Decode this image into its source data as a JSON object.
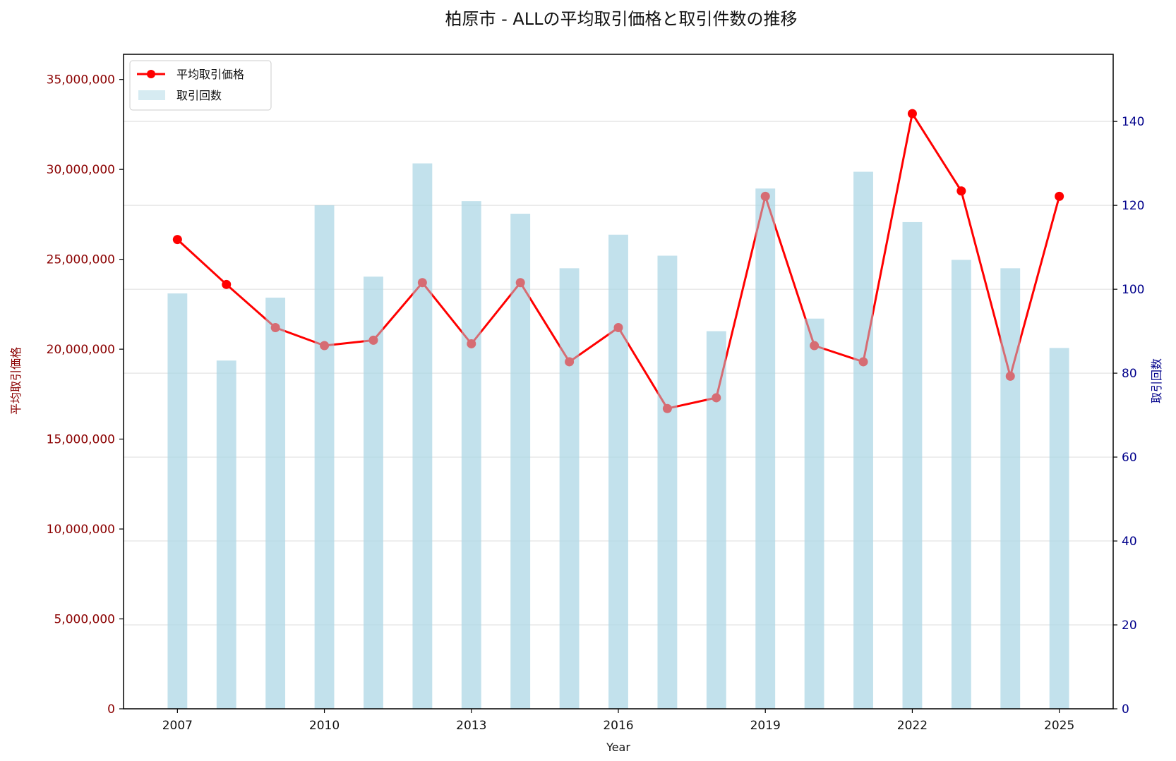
{
  "chart_data": {
    "type": "bar+line",
    "title": "柏原市 - ALLの平均取引価格と取引件数の推移",
    "xlabel": "Year",
    "ylabel_left": "平均取引価格",
    "ylabel_right": "取引回数",
    "x": [
      2007,
      2008,
      2009,
      2010,
      2011,
      2012,
      2013,
      2014,
      2015,
      2016,
      2017,
      2018,
      2019,
      2020,
      2021,
      2022,
      2023,
      2024,
      2025
    ],
    "x_ticks": [
      "2007",
      "2010",
      "2013",
      "2016",
      "2019",
      "2022",
      "2025"
    ],
    "xlim": [
      2005.9,
      2026.1
    ],
    "ylim_left": [
      0,
      36400000
    ],
    "ylim_right": [
      0,
      156
    ],
    "yticks_left": [
      "0",
      "5,000,000",
      "10,000,000",
      "15,000,000",
      "20,000,000",
      "25,000,000",
      "30,000,000",
      "35,000,000"
    ],
    "yticks_right": [
      "0",
      "20",
      "40",
      "60",
      "80",
      "100",
      "120",
      "140"
    ],
    "grid": "horizontal (right axis)",
    "legend_position": "top-left",
    "series": [
      {
        "name": "平均取引価格",
        "kind": "line",
        "axis": "left",
        "color": "#ff0000",
        "values": [
          26100000,
          23600000,
          21200000,
          20200000,
          20500000,
          23700000,
          20300000,
          23700000,
          19300000,
          21200000,
          16700000,
          17300000,
          28500000,
          20200000,
          19300000,
          33100000,
          28800000,
          18500000,
          28500000
        ]
      },
      {
        "name": "取引回数",
        "kind": "bar",
        "axis": "right",
        "color": "#add8e6",
        "values": [
          99,
          83,
          98,
          120,
          103,
          130,
          121,
          118,
          105,
          113,
          108,
          90,
          124,
          93,
          128,
          116,
          107,
          105,
          86
        ]
      }
    ]
  }
}
